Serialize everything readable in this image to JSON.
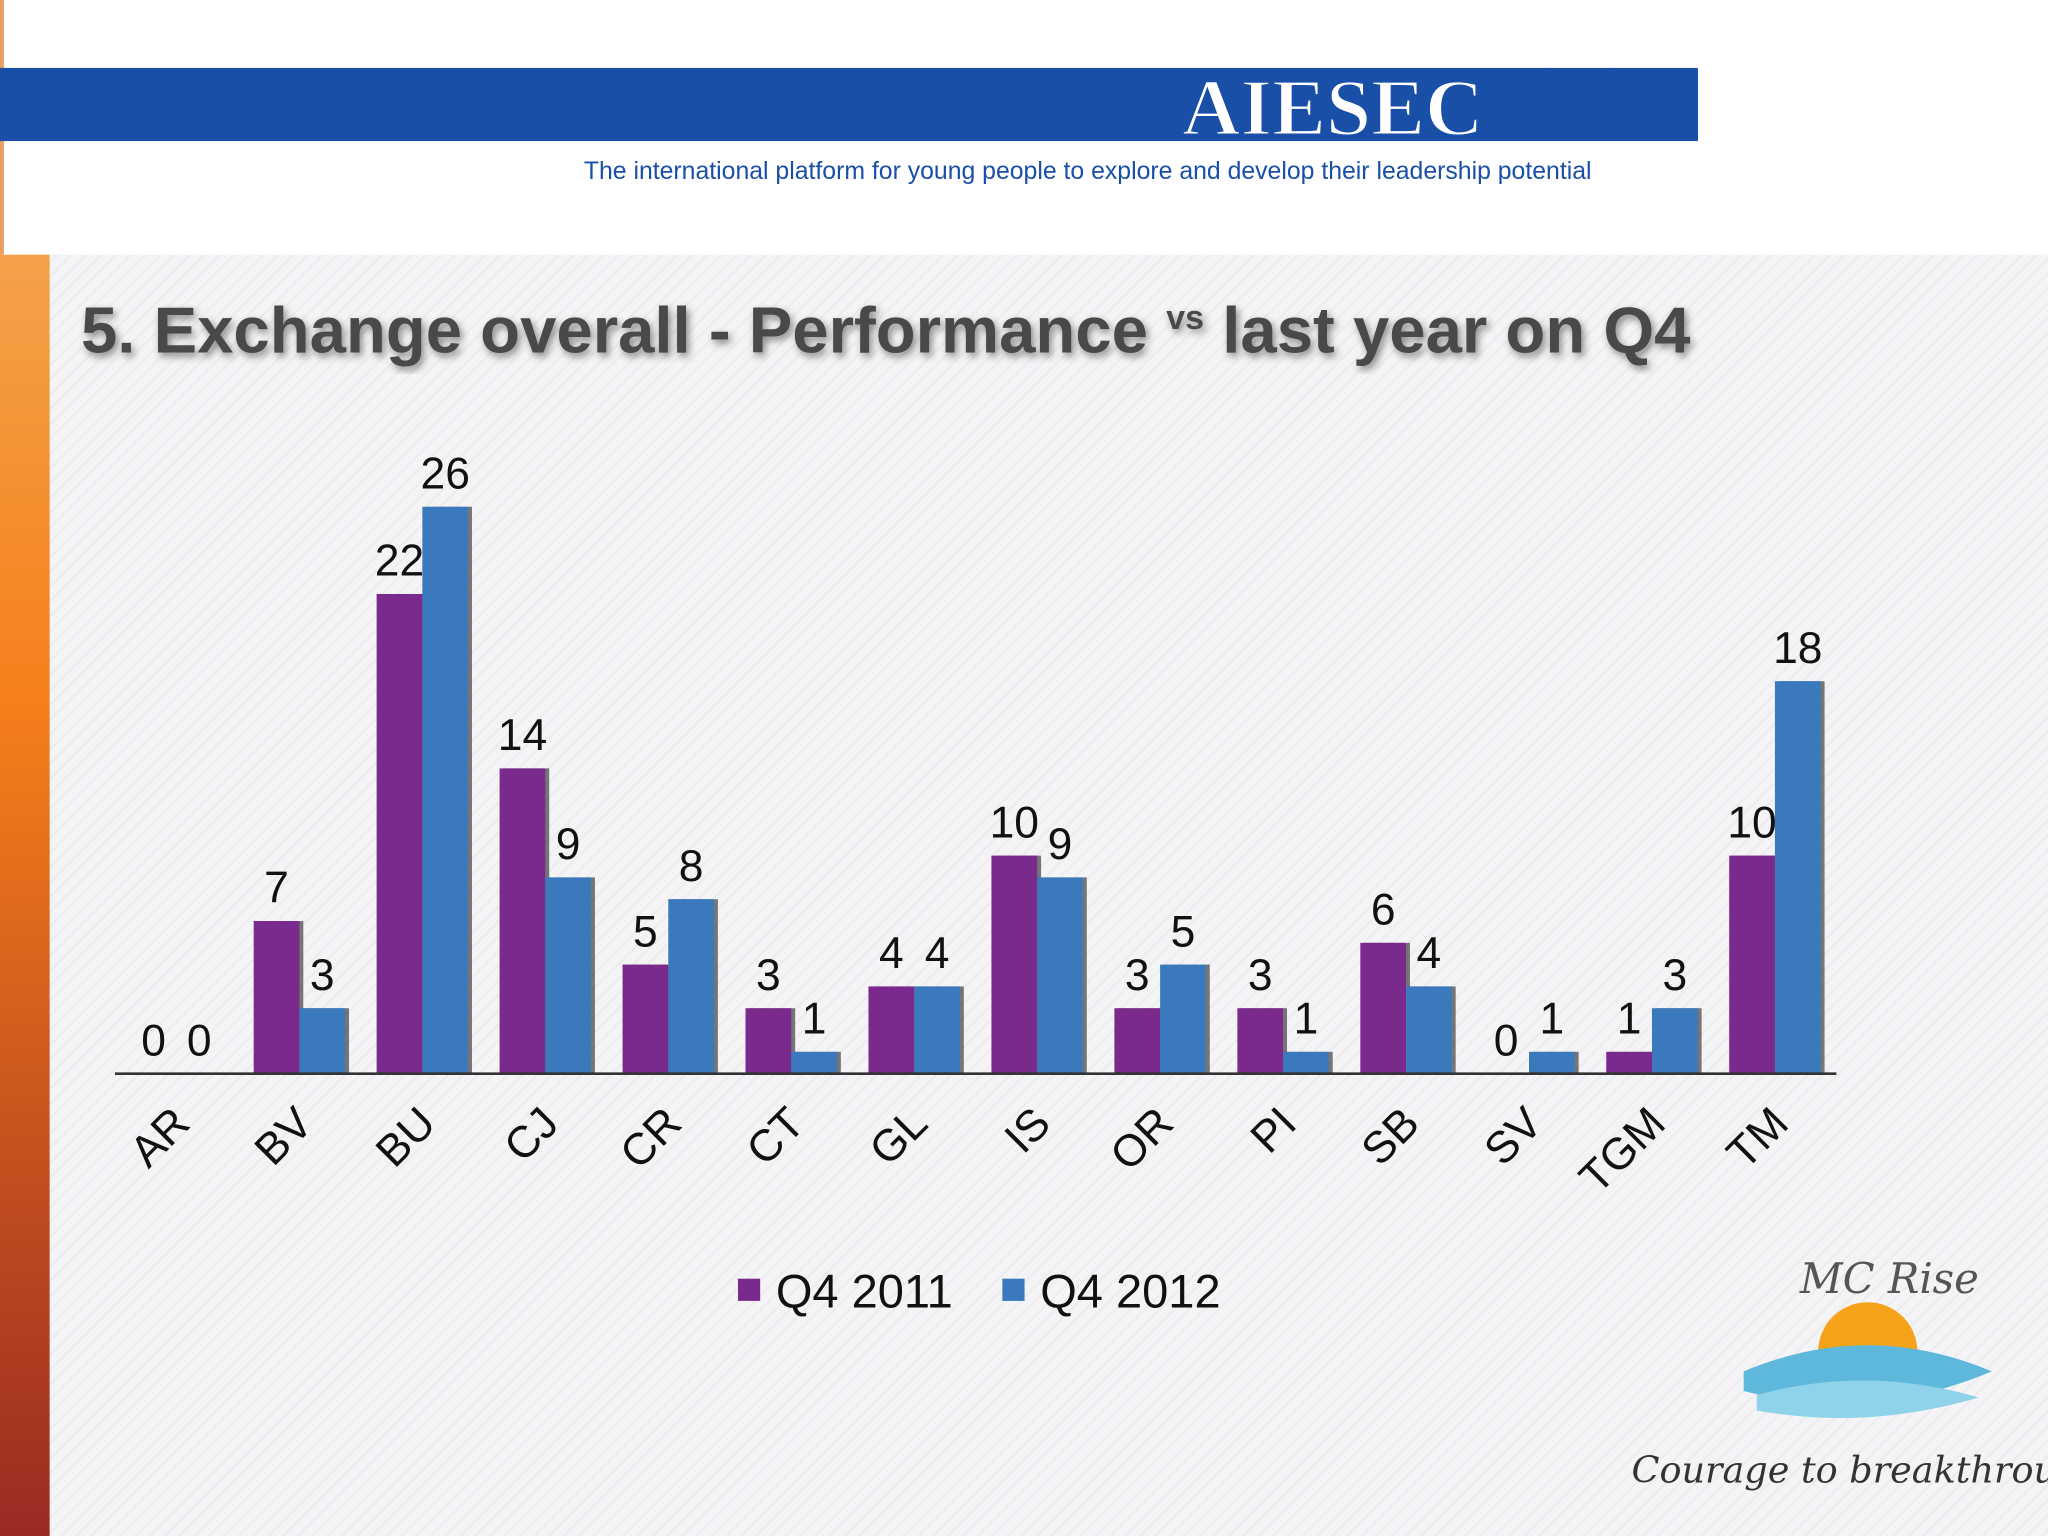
{
  "header": {
    "brand": "AIESEC",
    "tagline": "The international platform for young people to explore and develop their leadership potential"
  },
  "chart_data": {
    "type": "bar",
    "title": [
      "5. Exchange overall - Performance",
      "vs",
      "last year on Q4"
    ],
    "categories": [
      "AR",
      "BV",
      "BU",
      "CJ",
      "CR",
      "CT",
      "GL",
      "IS",
      "OR",
      "PI",
      "SB",
      "SV",
      "TGM",
      "TM"
    ],
    "series": [
      {
        "name": "Q4 2011",
        "color": "#7a2a8c",
        "values": [
          0,
          7,
          22,
          14,
          5,
          3,
          4,
          10,
          3,
          3,
          6,
          0,
          1,
          10
        ]
      },
      {
        "name": "Q4 2012",
        "color": "#3b79bd",
        "values": [
          0,
          3,
          26,
          9,
          8,
          1,
          4,
          9,
          5,
          1,
          4,
          1,
          3,
          18
        ]
      }
    ],
    "ylim": [
      0,
      26
    ],
    "legend": "bottom"
  },
  "logo": {
    "name": "MC Rise",
    "slogan": "Courage to breakthrough"
  }
}
